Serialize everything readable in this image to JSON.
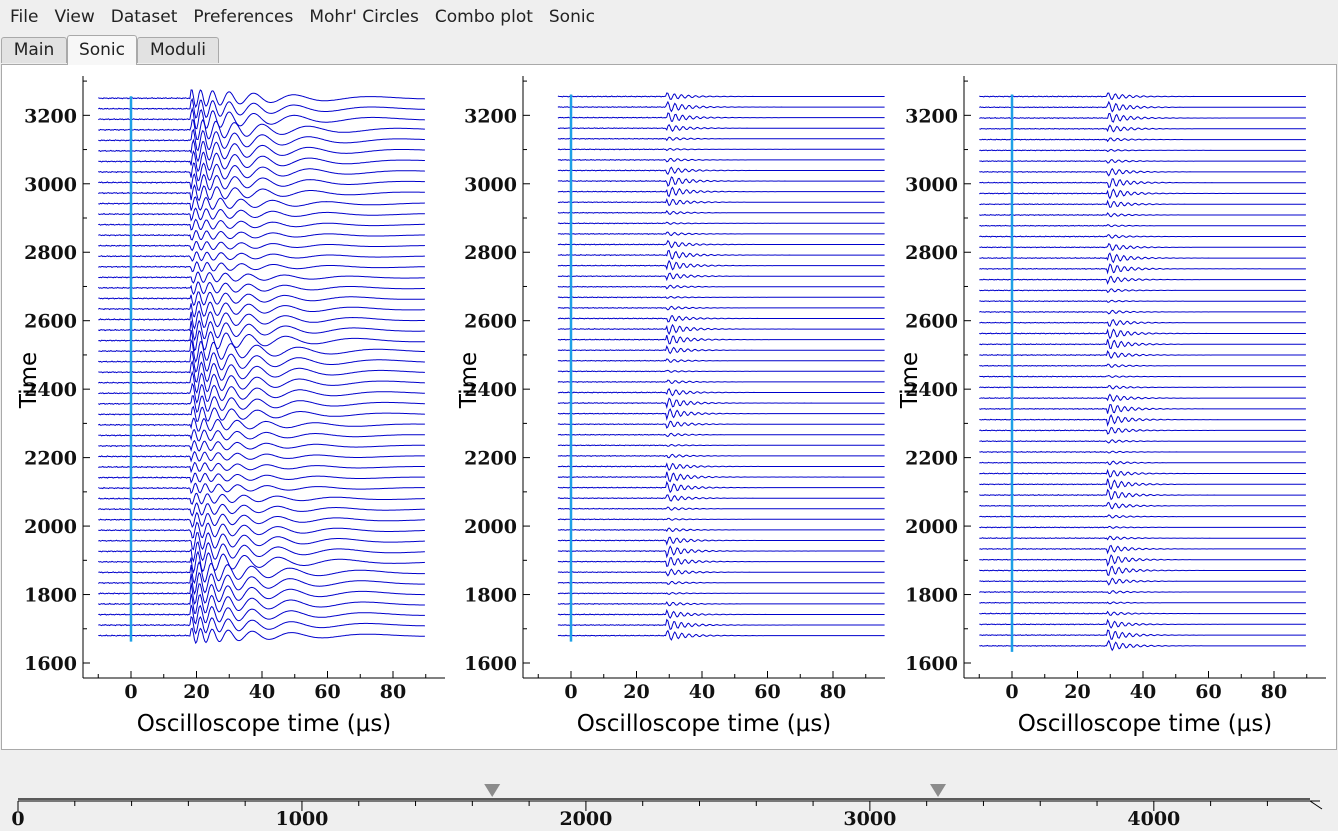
{
  "menubar": {
    "items": [
      "File",
      "View",
      "Dataset",
      "Preferences",
      "Mohr' Circles",
      "Combo plot",
      "Sonic"
    ]
  },
  "tabs": [
    {
      "label": "Main",
      "active": false
    },
    {
      "label": "Sonic",
      "active": true
    },
    {
      "label": "Moduli",
      "active": false
    }
  ],
  "colors": {
    "trace": "#0000cc",
    "marker_line": "#1ea0e6",
    "axis": "#000000",
    "background": "#ffffff"
  },
  "chart_data": [
    {
      "type": "line",
      "panel": "left",
      "title": "",
      "xlabel": "Oscilloscope time (μs)",
      "ylabel": "Time",
      "xlim": [
        -15,
        95
      ],
      "ylim": [
        1580,
        3300
      ],
      "xticks": [
        0,
        20,
        40,
        60,
        80
      ],
      "yticks": [
        1600,
        1800,
        2000,
        2200,
        2400,
        2600,
        2800,
        3000,
        3200
      ],
      "trace_x_range": [
        -10,
        90
      ],
      "trace_offsets_y": [
        1680,
        3250
      ],
      "trace_count": 52,
      "first_arrival_us": 18,
      "marker_x_us": 0,
      "waveform": "long-period"
    },
    {
      "type": "line",
      "panel": "middle",
      "title": "",
      "xlabel": "Oscilloscope time (μs)",
      "ylabel": "Time",
      "xlim": [
        -15,
        95
      ],
      "ylim": [
        1580,
        3300
      ],
      "xticks": [
        0,
        20,
        40,
        60,
        80
      ],
      "yticks": [
        1600,
        1800,
        2000,
        2200,
        2400,
        2600,
        2800,
        3000,
        3200
      ],
      "trace_x_range": [
        -4,
        96
      ],
      "trace_offsets_y": [
        1680,
        3255
      ],
      "trace_count": 52,
      "first_arrival_us": 29,
      "marker_x_us": 0,
      "waveform": "short-burst"
    },
    {
      "type": "line",
      "panel": "right",
      "title": "",
      "xlabel": "Oscilloscope time (μs)",
      "ylabel": "Time",
      "xlim": [
        -15,
        95
      ],
      "ylim": [
        1580,
        3300
      ],
      "xticks": [
        0,
        20,
        40,
        60,
        80
      ],
      "yticks": [
        1600,
        1800,
        2000,
        2200,
        2400,
        2600,
        2800,
        3000,
        3200
      ],
      "trace_x_range": [
        -10,
        90
      ],
      "trace_offsets_y": [
        1650,
        3255
      ],
      "trace_count": 52,
      "first_arrival_us": 29,
      "marker_x_us": 0,
      "waveform": "short-burst"
    }
  ],
  "timeline": {
    "tick_labels": [
      "0",
      "1000",
      "2000",
      "3000",
      "4000"
    ],
    "range": [
      0,
      4550
    ],
    "handles": [
      1670,
      3240
    ]
  }
}
